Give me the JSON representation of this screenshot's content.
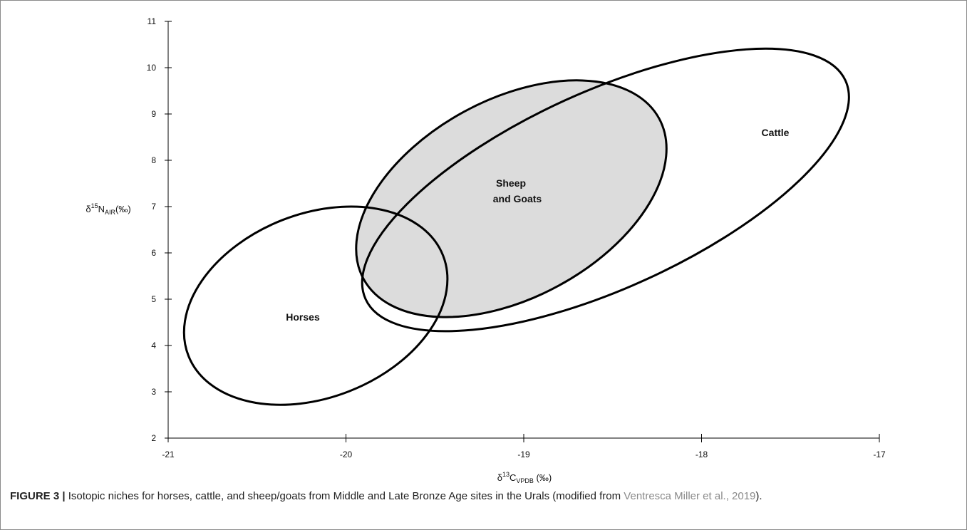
{
  "chart_data": {
    "type": "scatter",
    "xlim": [
      -21,
      -17
    ],
    "ylim": [
      2,
      11
    ],
    "x_ticks": [
      -21,
      -20,
      -19,
      -18,
      -17
    ],
    "y_ticks": [
      2,
      3,
      4,
      5,
      6,
      7,
      8,
      9,
      10,
      11
    ],
    "x_tick_labels": [
      "-21",
      "-20",
      "-19",
      "-18",
      "-17"
    ],
    "y_tick_labels": [
      "2",
      "3",
      "4",
      "5",
      "6",
      "7",
      "8",
      "9",
      "10",
      "11"
    ],
    "xlabel": {
      "prefix": "δ",
      "sup": "13",
      "main": "C",
      "sub": "VPDB",
      "suffix": " (‰)"
    },
    "ylabel": {
      "prefix": "δ",
      "sup": "15",
      "main": "N",
      "sub": "AIR",
      "suffix": "(‰)"
    },
    "grid": false,
    "ellipses": [
      {
        "name": "Sheep and Goats",
        "label_lines": [
          "Sheep",
          "and Goats"
        ],
        "center": [
          -19.07,
          7.17
        ],
        "fill": "#dcdcdc",
        "x_extent": [
          -19.88,
          -18.25
        ],
        "y_extent": [
          4.8,
          9.55
        ]
      },
      {
        "name": "Cattle",
        "label_lines": [
          "Cattle"
        ],
        "center": [
          -18.54,
          7.36
        ],
        "fill": "none",
        "x_extent": [
          -19.83,
          -17.08
        ],
        "y_extent": [
          4.15,
          10.6
        ]
      },
      {
        "name": "Horses",
        "label_lines": [
          "Horses"
        ],
        "center": [
          -20.17,
          4.86
        ],
        "fill": "none",
        "x_extent": [
          -20.93,
          -19.47
        ],
        "y_extent": [
          2.75,
          6.97
        ]
      }
    ]
  },
  "caption": {
    "figure_number": "FIGURE 3 |",
    "text": " Isotopic niches for horses, cattle, and sheep/goats from Middle and Late Bronze Age sites in the Urals (modified from ",
    "citation": "Ventresca Miller et al., 2019",
    "end": ")."
  }
}
